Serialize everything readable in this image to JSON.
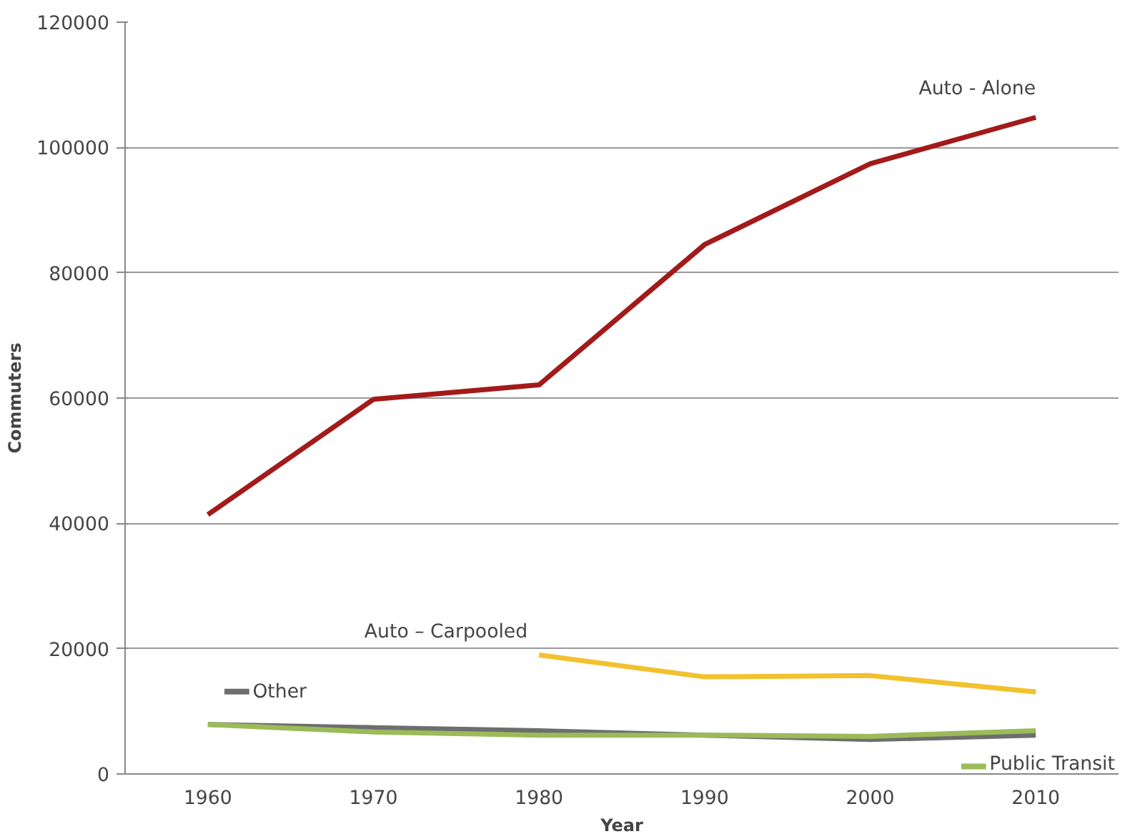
{
  "chart_data": {
    "type": "line",
    "xlabel": "Year",
    "ylabel": "Commuters",
    "categories": [
      "1960",
      "1970",
      "1980",
      "1990",
      "2000",
      "2010"
    ],
    "series": [
      {
        "name": "Auto - Alone",
        "color": "#a31a1a",
        "values": [
          41400,
          59800,
          62100,
          84500,
          97400,
          104800
        ]
      },
      {
        "name": "Auto – Carpooled",
        "color": "#f2c12e",
        "values": [
          null,
          null,
          19000,
          15500,
          15700,
          13100
        ]
      },
      {
        "name": "Other",
        "color": "#6e6e6e",
        "values": [
          7900,
          7400,
          6900,
          6200,
          5500,
          6200
        ]
      },
      {
        "name": "Public Transit",
        "color": "#9bbb59",
        "values": [
          7900,
          6700,
          6200,
          6200,
          6000,
          6900
        ]
      }
    ],
    "ylim": [
      0,
      120000
    ],
    "yticks": [
      0,
      20000,
      40000,
      60000,
      80000,
      100000,
      120000
    ],
    "grid": "y",
    "legend": "bottom",
    "marker": "none",
    "line_style": "solid"
  }
}
